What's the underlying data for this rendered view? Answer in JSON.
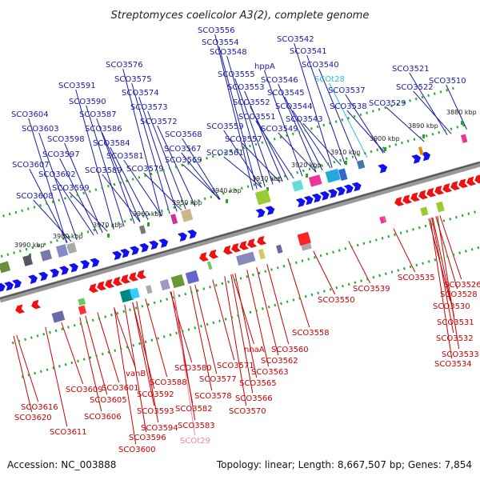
{
  "title": "Streptomyces coelicolor A3(2), complete genome",
  "footer": {
    "accession": "Accession: NC_003888",
    "stats": "Topology: linear; Length: 8,667,507 bp; Genes: 7,854"
  },
  "colors": {
    "forward_label": "#1a1aa8",
    "reverse_label": "#cc0000",
    "trna_forward_label": "#33bbdd",
    "trna_reverse_label": "#ee88aa",
    "forward_arrow": "#1111ee",
    "reverse_arrow": "#ee1111",
    "scale_dots": "#22aa22",
    "backbone": "#777777"
  },
  "scale_ticks": [
    "3880 kbp",
    "3890 kbp",
    "3900 kbp",
    "3910 kbp",
    "3920 kbp",
    "3930 kbp",
    "3940 kbp",
    "3950 kbp",
    "3960 kbp",
    "3970 kbp",
    "3980 kbp",
    "3990 kbp"
  ],
  "forward_genes": [
    "SCO3556",
    "SCO3554",
    "SCO3548",
    "hppA",
    "SCO3542",
    "SCO3541",
    "SCO3540",
    "SCO3555",
    "SCO3546",
    "SCO3553",
    "SCO3545",
    "SCO3552",
    "SCO3544",
    "SCO3551",
    "SCO3543",
    "SCO3559",
    "SCO3549",
    "SCO3557",
    "SCO3561",
    "SCO3537",
    "SCO3538",
    "SCO3529",
    "SCO3521",
    "SCO3522",
    "SCO3510",
    "SCO3576",
    "SCO3575",
    "SCO3574",
    "SCO3573",
    "SCO3572",
    "SCO3568",
    "SCO3567",
    "SCO3569",
    "SCO3591",
    "SCO3590",
    "SCO3587",
    "SCO3586",
    "SCO3584",
    "SCO3581",
    "SCO3589",
    "SCO3579",
    "SCO3604",
    "SCO3603",
    "SCO3598",
    "SCO3597",
    "SCO3607",
    "SCO3602",
    "SCO3599",
    "SCO3608"
  ],
  "forward_trna": [
    "SCOt28"
  ],
  "reverse_genes": [
    "SCO3539",
    "SCO3535",
    "SCO3526",
    "SCO3528",
    "SCO3530",
    "SCO3531",
    "SCO3532",
    "SCO3533",
    "SCO3534",
    "SCO3550",
    "SCO3558",
    "SCO3560",
    "nhaA",
    "SCO3562",
    "SCO3563",
    "SCO3571",
    "SCO3565",
    "SCO3566",
    "SCO3570",
    "SCO3580",
    "SCO3577",
    "SCO3578",
    "SCO3588",
    "vanB",
    "SCO3592",
    "SCO3582",
    "SCO3583",
    "SCO3593",
    "SCO3601",
    "SCO3594",
    "SCO3605",
    "SCO3609",
    "SCO3596",
    "SCO3600",
    "SCO3606",
    "SCO3611",
    "SCO3616",
    "SCO3620"
  ],
  "reverse_trna": [
    "SCOt29"
  ]
}
